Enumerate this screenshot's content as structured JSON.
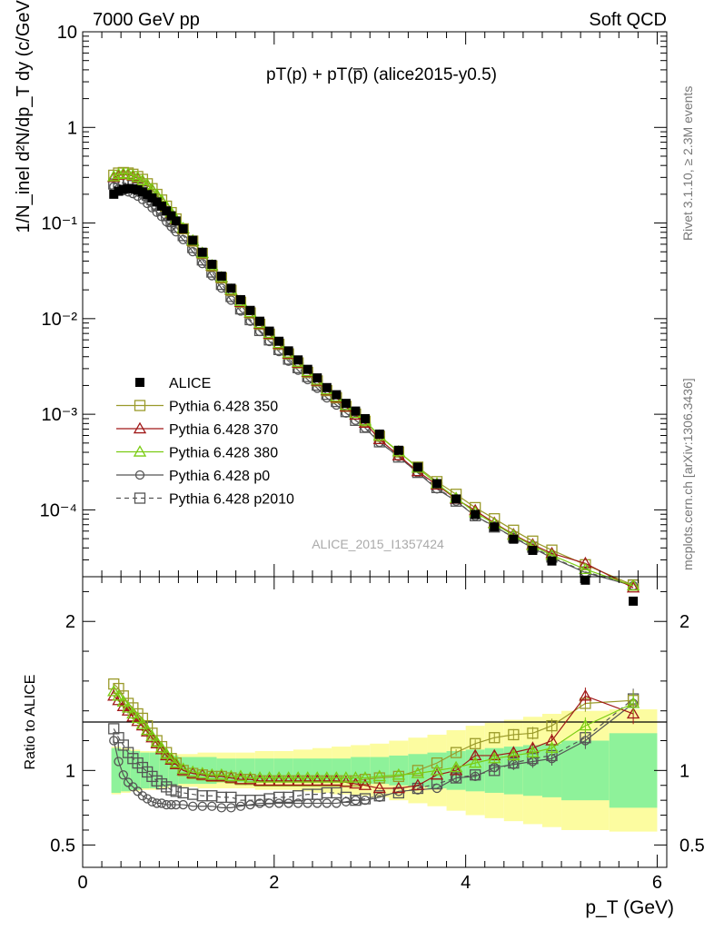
{
  "header": {
    "left": "7000 GeV pp",
    "right": "Soft QCD"
  },
  "side": {
    "rivet": "Rivet 3.1.10, ≥ 2.3M events",
    "mcplots": "mcplots.cern.ch [arXiv:1306.3436]"
  },
  "plot_title": "pT(p) + pT(p̅) (alice2015-y0.5)",
  "watermark": "ALICE_2015_I1357424",
  "xlabel": "p_T (GeV)",
  "ylabel_main": "1/N_inel d²N/dp_T dy (c/GeV)",
  "ylabel_ratio": "Ratio to ALICE",
  "chart_data": [
    {
      "type": "scatter",
      "panel": "main",
      "yscale": "log",
      "xlim": [
        0,
        6.1
      ],
      "ylim": [
        2e-05,
        10
      ],
      "ytick_labels": [
        "10",
        "1",
        "10⁻¹",
        "10⁻²",
        "10⁻³",
        "10⁻⁴"
      ],
      "xtick_labels": [
        "0",
        "2",
        "4",
        "6"
      ],
      "x": [
        0.325,
        0.375,
        0.425,
        0.475,
        0.525,
        0.575,
        0.625,
        0.675,
        0.725,
        0.775,
        0.825,
        0.875,
        0.925,
        0.975,
        1.05,
        1.15,
        1.25,
        1.35,
        1.45,
        1.55,
        1.65,
        1.75,
        1.85,
        1.95,
        2.05,
        2.15,
        2.25,
        2.35,
        2.45,
        2.55,
        2.65,
        2.75,
        2.85,
        2.95,
        3.1,
        3.3,
        3.5,
        3.7,
        3.9,
        4.1,
        4.3,
        4.5,
        4.7,
        4.9,
        5.25,
        5.75
      ],
      "series": [
        {
          "name": "ALICE",
          "color": "#000000",
          "marker": "filled-square",
          "values": [
            0.2,
            0.215,
            0.225,
            0.23,
            0.228,
            0.222,
            0.212,
            0.198,
            0.183,
            0.166,
            0.15,
            0.134,
            0.119,
            0.105,
            0.087,
            0.066,
            0.0495,
            0.037,
            0.0278,
            0.0208,
            0.0158,
            0.0122,
            0.0094,
            0.0074,
            0.0058,
            0.0046,
            0.0037,
            0.00295,
            0.0024,
            0.0019,
            0.0016,
            0.0013,
            0.00108,
            0.0009,
            0.00062,
            0.00042,
            0.00028,
            0.000188,
            0.00013,
            8.95e-05,
            6.62e-05,
            4.94e-05,
            3.77e-05,
            2.92e-05,
            1.84e-05,
            1.11e-05
          ]
        },
        {
          "name": "Pythia 6.428 350",
          "color": "#9a9a2a",
          "marker": "open-square",
          "ratio": [
            1.58,
            1.55,
            1.5,
            1.45,
            1.42,
            1.38,
            1.35,
            1.3,
            1.25,
            1.2,
            1.16,
            1.12,
            1.08,
            1.05,
            1.0,
            0.98,
            0.97,
            0.96,
            0.96,
            0.95,
            0.94,
            0.94,
            0.93,
            0.93,
            0.93,
            0.93,
            0.93,
            0.93,
            0.93,
            0.93,
            0.93,
            0.93,
            0.93,
            0.94,
            0.95,
            0.96,
            1.0,
            1.05,
            1.12,
            1.18,
            1.22,
            1.24,
            1.25,
            1.3,
            1.45,
            1.47
          ]
        },
        {
          "name": "Pythia 6.428 370",
          "color": "#a01818",
          "marker": "open-triangle",
          "ratio": [
            1.5,
            1.47,
            1.43,
            1.4,
            1.36,
            1.33,
            1.3,
            1.26,
            1.22,
            1.18,
            1.14,
            1.1,
            1.07,
            1.04,
            1.0,
            0.98,
            0.97,
            0.96,
            0.96,
            0.95,
            0.94,
            0.94,
            0.93,
            0.93,
            0.93,
            0.93,
            0.93,
            0.93,
            0.93,
            0.93,
            0.93,
            0.92,
            0.91,
            0.9,
            0.88,
            0.88,
            0.9,
            0.97,
            1.0,
            1.1,
            1.1,
            1.12,
            1.15,
            1.2,
            1.5,
            1.38
          ]
        },
        {
          "name": "Pythia 6.428 380",
          "color": "#7acc12",
          "marker": "open-triangle",
          "ratio": [
            1.53,
            1.5,
            1.46,
            1.42,
            1.38,
            1.35,
            1.31,
            1.27,
            1.23,
            1.19,
            1.15,
            1.11,
            1.08,
            1.05,
            1.01,
            0.99,
            0.98,
            0.97,
            0.97,
            0.96,
            0.96,
            0.95,
            0.95,
            0.95,
            0.95,
            0.95,
            0.95,
            0.95,
            0.95,
            0.95,
            0.95,
            0.95,
            0.95,
            0.95,
            0.96,
            0.97,
            0.98,
            1.0,
            1.02,
            1.05,
            1.08,
            1.1,
            1.12,
            1.15,
            1.3,
            1.45
          ]
        },
        {
          "name": "Pythia 6.428 p0",
          "color": "#555555",
          "marker": "open-circle",
          "ratio": [
            1.2,
            1.06,
            0.97,
            0.92,
            0.89,
            0.86,
            0.83,
            0.81,
            0.79,
            0.78,
            0.78,
            0.77,
            0.77,
            0.77,
            0.77,
            0.76,
            0.76,
            0.76,
            0.75,
            0.75,
            0.76,
            0.77,
            0.78,
            0.78,
            0.78,
            0.78,
            0.78,
            0.78,
            0.78,
            0.78,
            0.78,
            0.79,
            0.8,
            0.8,
            0.82,
            0.86,
            0.87,
            0.88,
            0.95,
            0.96,
            1.02,
            1.04,
            1.06,
            1.08,
            1.2,
            1.45
          ]
        },
        {
          "name": "Pythia 6.428 p2010",
          "color": "#555555",
          "marker": "open-square",
          "dashed": true,
          "ratio": [
            1.28,
            1.22,
            1.17,
            1.12,
            1.08,
            1.05,
            1.02,
            0.99,
            0.96,
            0.93,
            0.91,
            0.89,
            0.87,
            0.86,
            0.85,
            0.84,
            0.83,
            0.83,
            0.82,
            0.82,
            0.8,
            0.8,
            0.8,
            0.81,
            0.82,
            0.82,
            0.83,
            0.84,
            0.84,
            0.85,
            0.85,
            0.82,
            0.8,
            0.81,
            0.83,
            0.85,
            0.88,
            0.91,
            0.95,
            0.97,
            1.0,
            1.05,
            1.08,
            1.1,
            1.22,
            1.48
          ]
        }
      ]
    },
    {
      "type": "scatter",
      "panel": "ratio",
      "ylim": [
        0.35,
        2.3
      ],
      "ytick_labels": [
        "0.5",
        "1",
        "2"
      ],
      "reference_line": 1,
      "band_edges": [
        0.3,
        0.4,
        0.5,
        0.6,
        0.7,
        0.8,
        0.9,
        1.0,
        1.2,
        1.4,
        1.6,
        1.8,
        2.0,
        2.2,
        2.4,
        2.6,
        2.8,
        3.0,
        3.2,
        3.4,
        3.6,
        3.8,
        4.0,
        4.2,
        4.4,
        4.6,
        4.8,
        5.0,
        5.5,
        6.0
      ],
      "band_inner": [
        0.15,
        0.14,
        0.13,
        0.12,
        0.12,
        0.11,
        0.1,
        0.09,
        0.09,
        0.08,
        0.08,
        0.08,
        0.08,
        0.08,
        0.08,
        0.08,
        0.09,
        0.09,
        0.1,
        0.11,
        0.12,
        0.13,
        0.14,
        0.15,
        0.16,
        0.17,
        0.18,
        0.2,
        0.25
      ],
      "band_outer": [
        0.16,
        0.15,
        0.14,
        0.13,
        0.13,
        0.12,
        0.11,
        0.11,
        0.12,
        0.12,
        0.12,
        0.13,
        0.13,
        0.14,
        0.15,
        0.16,
        0.17,
        0.18,
        0.2,
        0.22,
        0.24,
        0.27,
        0.3,
        0.32,
        0.34,
        0.36,
        0.38,
        0.4,
        0.41
      ],
      "band_colors": {
        "inner": "#8ef29a",
        "outer": "#fcfca0"
      }
    }
  ]
}
